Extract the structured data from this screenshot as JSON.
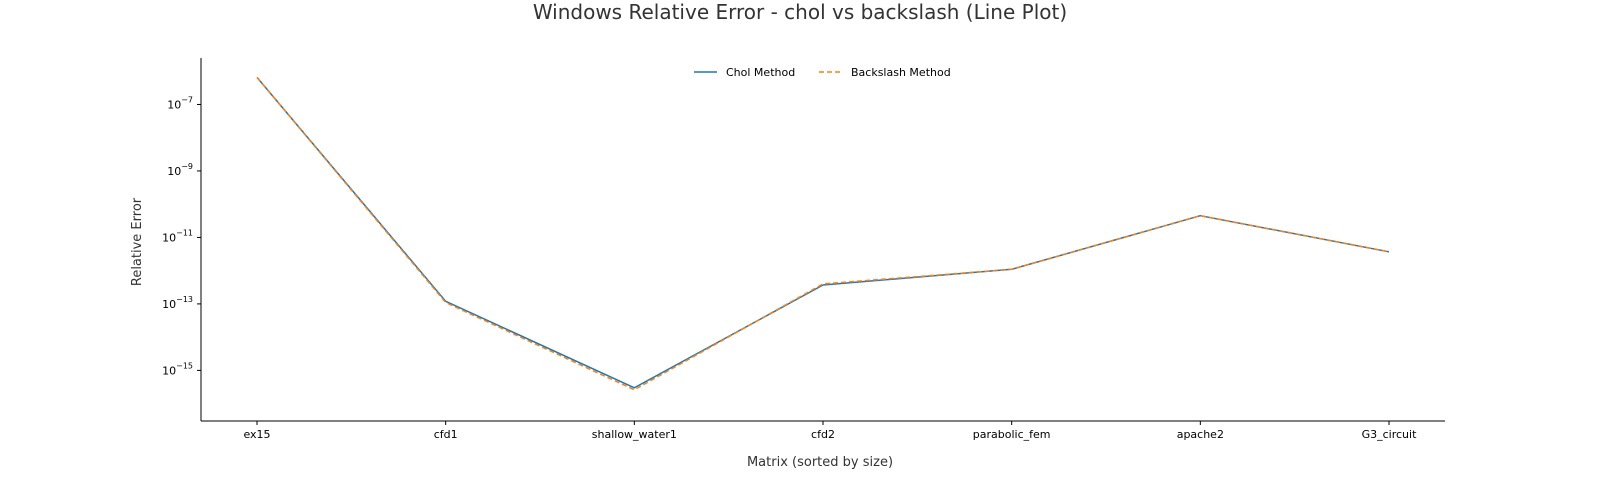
{
  "chart_data": {
    "type": "line",
    "title": "Windows Relative Error - chol vs backslash (Line Plot)",
    "xlabel": "Matrix (sorted by size)",
    "ylabel": "Relative Error",
    "yscale": "log",
    "ylim": [
      3e-17,
      2.5e-06
    ],
    "yticks": [
      {
        "value": 1e-07,
        "base": "10",
        "exp": "−7"
      },
      {
        "value": 1e-09,
        "base": "10",
        "exp": "−9"
      },
      {
        "value": 1e-11,
        "base": "10",
        "exp": "−11"
      },
      {
        "value": 1e-13,
        "base": "10",
        "exp": "−13"
      },
      {
        "value": 1e-15,
        "base": "10",
        "exp": "−15"
      }
    ],
    "categories": [
      "ex15",
      "cfd1",
      "shallow_water1",
      "cfd2",
      "parabolic_fem",
      "apache2",
      "G3_circuit"
    ],
    "series": [
      {
        "name": "Chol Method",
        "color": "#1f77b4",
        "dash": "solid",
        "values": [
          6.5e-07,
          1.2e-13,
          3e-16,
          3.7e-13,
          1.1e-12,
          4.5e-11,
          3.7e-12
        ]
      },
      {
        "name": "Backslash Method",
        "color": "#ff7f0e",
        "dash": "dashed",
        "values": [
          6.5e-07,
          1.1e-13,
          2.6e-16,
          4e-13,
          1.1e-12,
          4.5e-11,
          3.7e-12
        ]
      }
    ],
    "legend": "top-center",
    "grid": false
  }
}
